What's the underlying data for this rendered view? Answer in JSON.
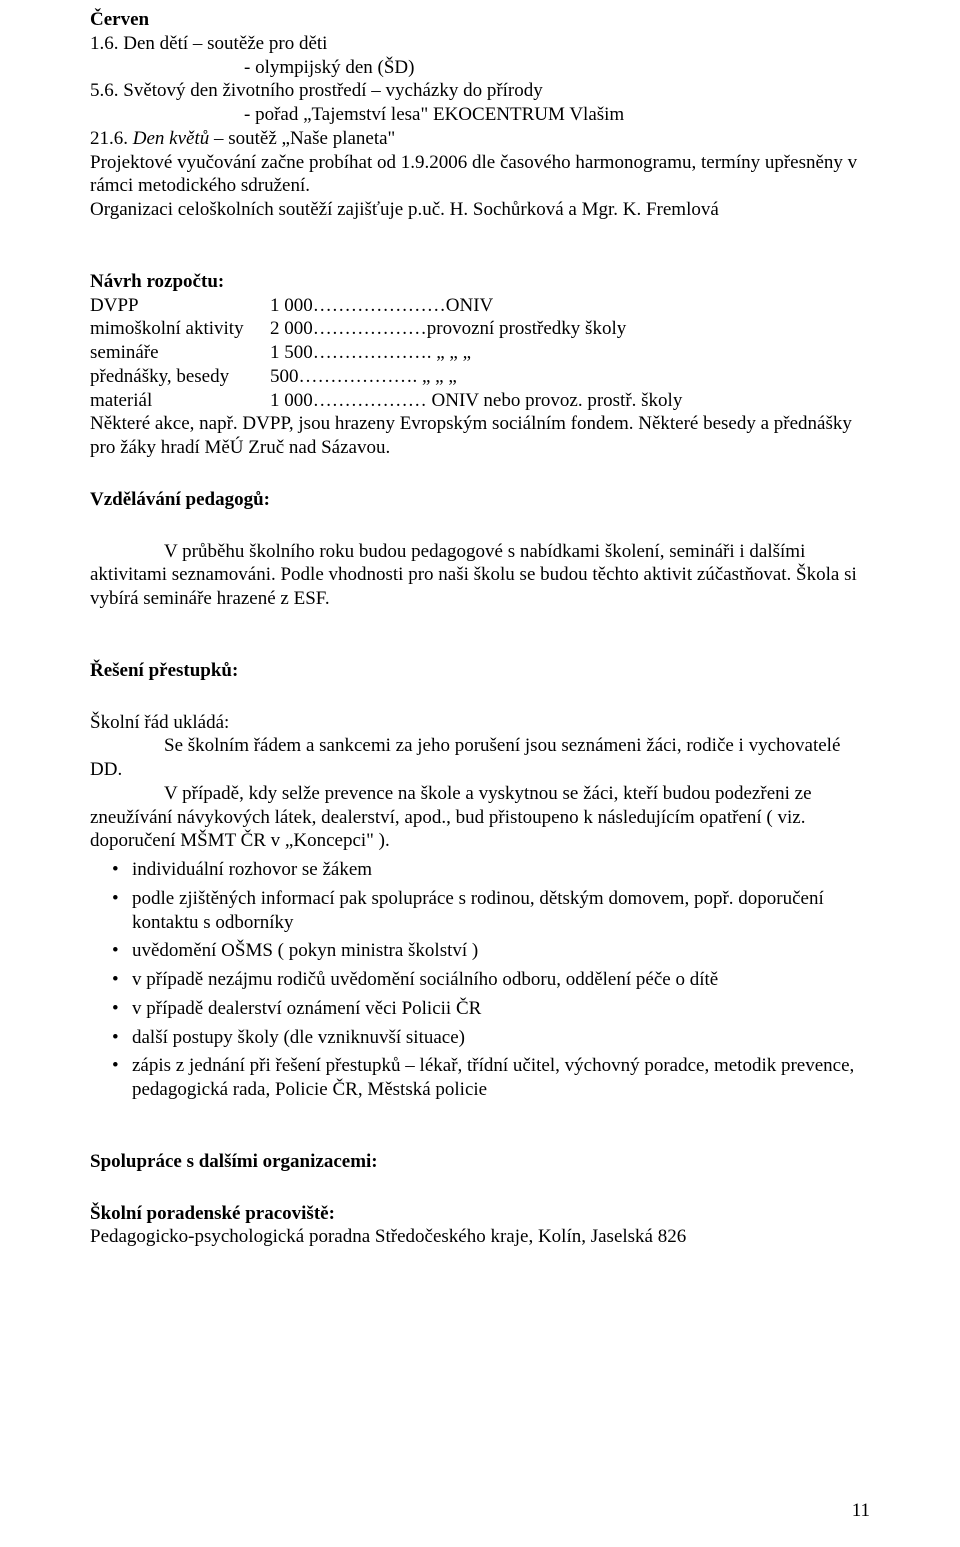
{
  "cerven": {
    "heading": "Červen",
    "line1": "1.6. Den dětí – soutěže pro děti",
    "line1a": "- olympijský den (ŠD)",
    "line2": "5.6. Světový den životního prostředí – vycházky do přírody",
    "line2a": "- pořad „Tajemství lesa\" EKOCENTRUM Vlašim",
    "line3": "21.6. Den květů – soutěž „Naše planeta\"",
    "proj": "Projektové vyučování začne probíhat od 1.9.2006 dle časového harmonogramu, termíny upřesněny v rámci metodického sdružení.",
    "org": "Organizaci celoškolních soutěží zajišťuje p.uč. H. Sochůrková  a Mgr. K. Fremlová"
  },
  "rozpocet": {
    "heading": "Návrh rozpočtu:",
    "rows": [
      {
        "label": "DVPP",
        "val": "1 000…………………ONIV"
      },
      {
        "label": "mimoškolní aktivity",
        "val": "2 000………………provozní prostředky školy"
      },
      {
        "label": "semináře",
        "val": "1 500……………….       „                „             „"
      },
      {
        "label": "přednášky, besedy",
        "val": "   500……………….       „                „             „"
      },
      {
        "label": "materiál",
        "val": "1 000………………  ONIV nebo provoz. prostř. školy"
      }
    ],
    "note": "Některé akce, např. DVPP, jsou hrazeny  Evropským sociálním fondem. Některé besedy a přednášky pro žáky hradí  MěÚ Zruč nad Sázavou."
  },
  "vzdel": {
    "heading": "Vzdělávání pedagogů:",
    "para": "V průběhu školního roku budou pedagogové s nabídkami školení, semináři i dalšími aktivitami seznamováni. Podle vhodnosti pro naši školu se budou těchto aktivit zúčastňovat. Škola si vybírá semináře hrazené z ESF."
  },
  "prestupky": {
    "heading": "Řešení přestupků:",
    "intro": "Školní řád ukládá:",
    "p1": "Se školním řádem a sankcemi za jeho porušení jsou seznámeni žáci, rodiče i vychovatelé DD.",
    "p2": "V případě, kdy selže prevence na škole a vyskytnou se žáci, kteří budou podezřeni ze zneužívání návykových látek, dealerství, apod., bud přistoupeno k následujícím opatření ( viz. doporučení MŠMT ČR v „Koncepci\" ).",
    "bullets": [
      "individuální rozhovor se žákem",
      "podle zjištěných informací pak spolupráce s rodinou, dětským domovem, popř. doporučení kontaktu s odborníky",
      "uvědomění OŠMS ( pokyn ministra školství )",
      "v případě nezájmu rodičů uvědomění sociálního odboru, oddělení péče o dítě",
      "v případě dealerství oznámení věci Policii ČR",
      "další postupy školy (dle vzniknuvší situace)",
      "zápis z jednání při řešení přestupků – lékař, třídní učitel, výchovný poradce, metodik prevence, pedagogická rada, Policie ČR, Městská policie"
    ]
  },
  "spoluprace": {
    "heading": "Spolupráce s dalšími organizacemi:",
    "sub": "Školní poradenské pracoviště:",
    "line": "Pedagogicko-psychologická poradna Středočeského kraje, Kolín, Jaselská 826"
  },
  "pageNumber": "11"
}
